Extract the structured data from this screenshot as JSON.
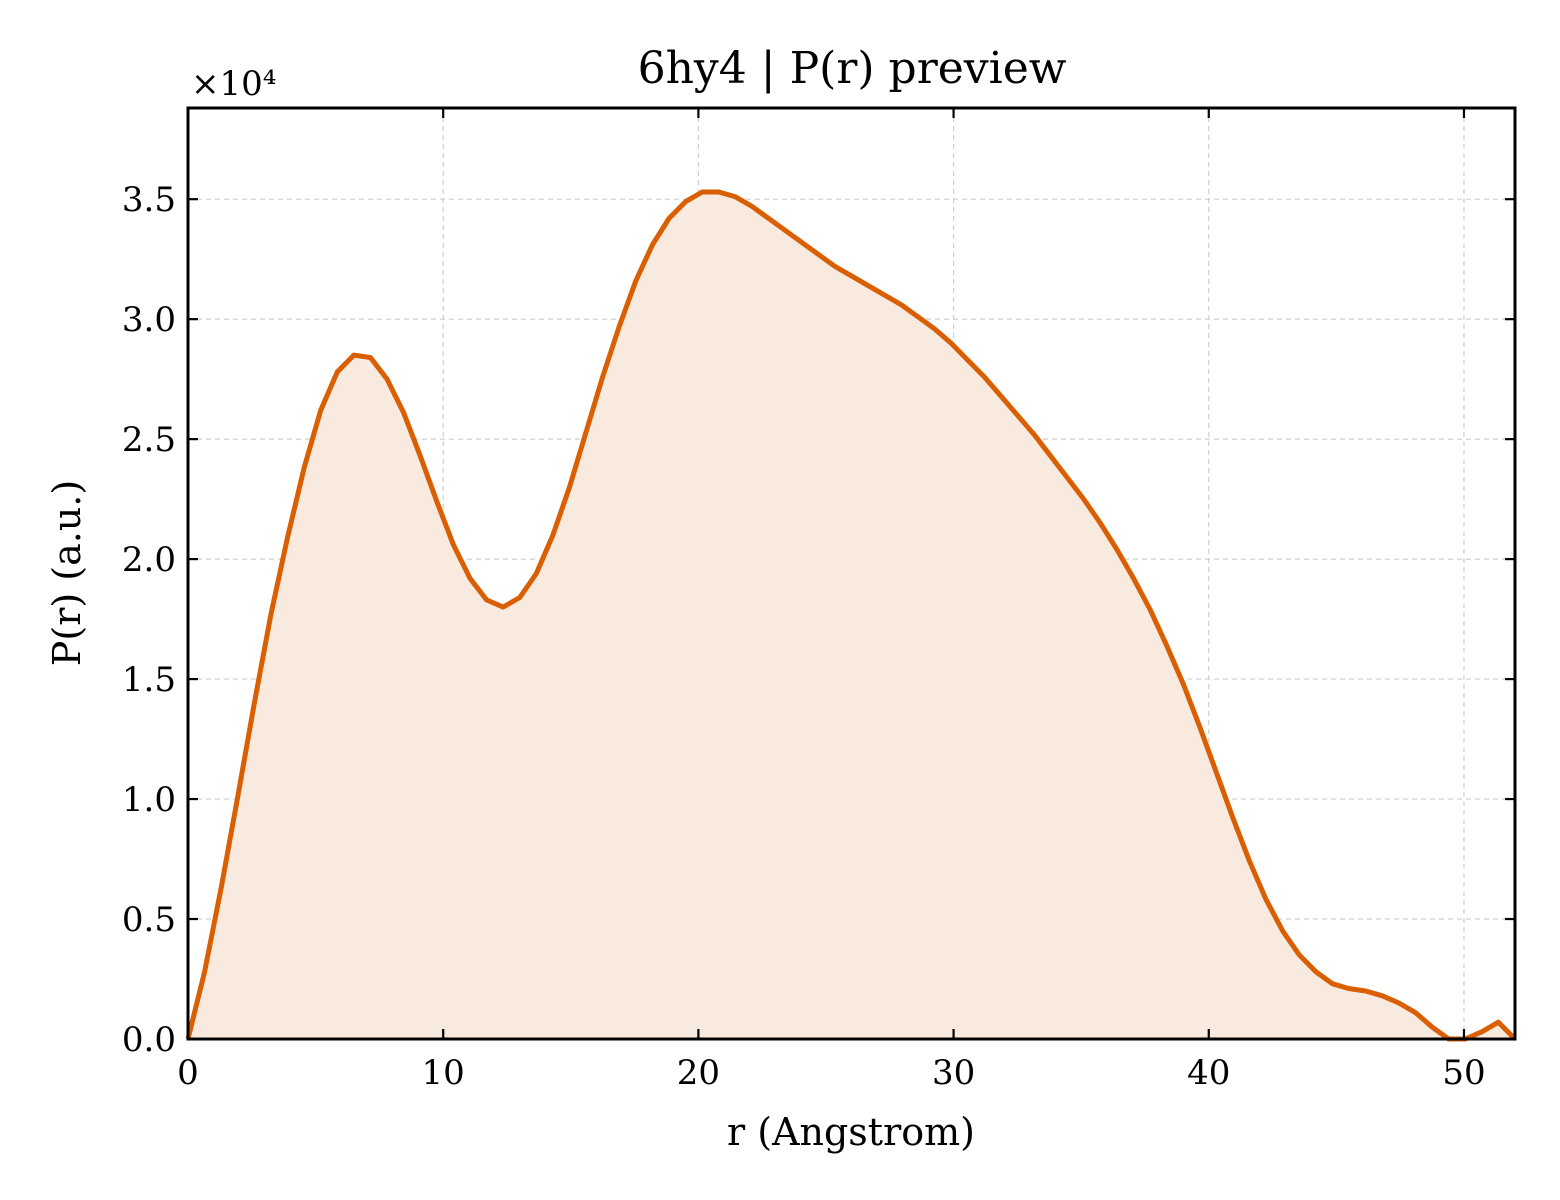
{
  "chart_data": {
    "type": "area",
    "title": "6hy4 | P(r) preview",
    "xlabel": "r (Angstrom)",
    "ylabel": "P(r) (a.u.)",
    "y_offset_label": "×10⁴",
    "y_scale": 10000,
    "xlim": [
      0,
      52
    ],
    "ylim": [
      0,
      38800
    ],
    "x_ticks": [
      0,
      10,
      20,
      30,
      40,
      50
    ],
    "x_tick_labels": [
      "0",
      "10",
      "20",
      "30",
      "40",
      "50"
    ],
    "y_ticks": [
      0,
      5000,
      10000,
      15000,
      20000,
      25000,
      30000,
      35000
    ],
    "y_tick_labels": [
      "0.0",
      "0.5",
      "1.0",
      "1.5",
      "2.0",
      "2.5",
      "3.0",
      "3.5"
    ],
    "grid": true,
    "line_color": "#d95f02",
    "fill_color": "#f8eadf",
    "series": [
      {
        "x": [
          0,
          0.65,
          1.3,
          1.95,
          2.6,
          3.25,
          3.9,
          4.55,
          5.2,
          5.85,
          6.5,
          7.15,
          7.8,
          8.45,
          9.1,
          9.75,
          10.4,
          11.05,
          11.7,
          12.35,
          13.0,
          13.65,
          14.3,
          14.95,
          15.6,
          16.25,
          16.9,
          17.55,
          18.2,
          18.85,
          19.5,
          20.15,
          20.8,
          21.45,
          22.1,
          22.75,
          23.4,
          24.05,
          24.7,
          25.35,
          26.0,
          26.65,
          27.3,
          27.95,
          28.6,
          29.25,
          29.9,
          30.55,
          31.2,
          31.85,
          32.5,
          33.15,
          33.8,
          34.45,
          35.1,
          35.75,
          36.4,
          37.05,
          37.7,
          38.35,
          39.0,
          39.65,
          40.3,
          40.95,
          41.6,
          42.25,
          42.9,
          43.55,
          44.2,
          44.85,
          45.5,
          46.15,
          46.8,
          47.45,
          48.1,
          48.75,
          49.4,
          50.05,
          50.7,
          51.35,
          52.0
        ],
        "y": [
          0,
          2800,
          6300,
          10100,
          14000,
          17700,
          20900,
          23800,
          26200,
          27800,
          28500,
          28400,
          27500,
          26100,
          24300,
          22400,
          20600,
          19200,
          18300,
          18000,
          18400,
          19400,
          21000,
          23000,
          25300,
          27600,
          29700,
          31600,
          33100,
          34200,
          34900,
          35300,
          35300,
          35100,
          34700,
          34200,
          33700,
          33200,
          32700,
          32200,
          31800,
          31400,
          31000,
          30600,
          30100,
          29600,
          29000,
          28300,
          27600,
          26800,
          26000,
          25200,
          24300,
          23400,
          22500,
          21500,
          20400,
          19200,
          17900,
          16400,
          14800,
          13000,
          11100,
          9200,
          7400,
          5800,
          4500,
          3500,
          2800,
          2300,
          2100,
          2000,
          1800,
          1500,
          1100,
          500,
          0,
          0,
          300,
          700,
          0
        ]
      }
    ]
  }
}
